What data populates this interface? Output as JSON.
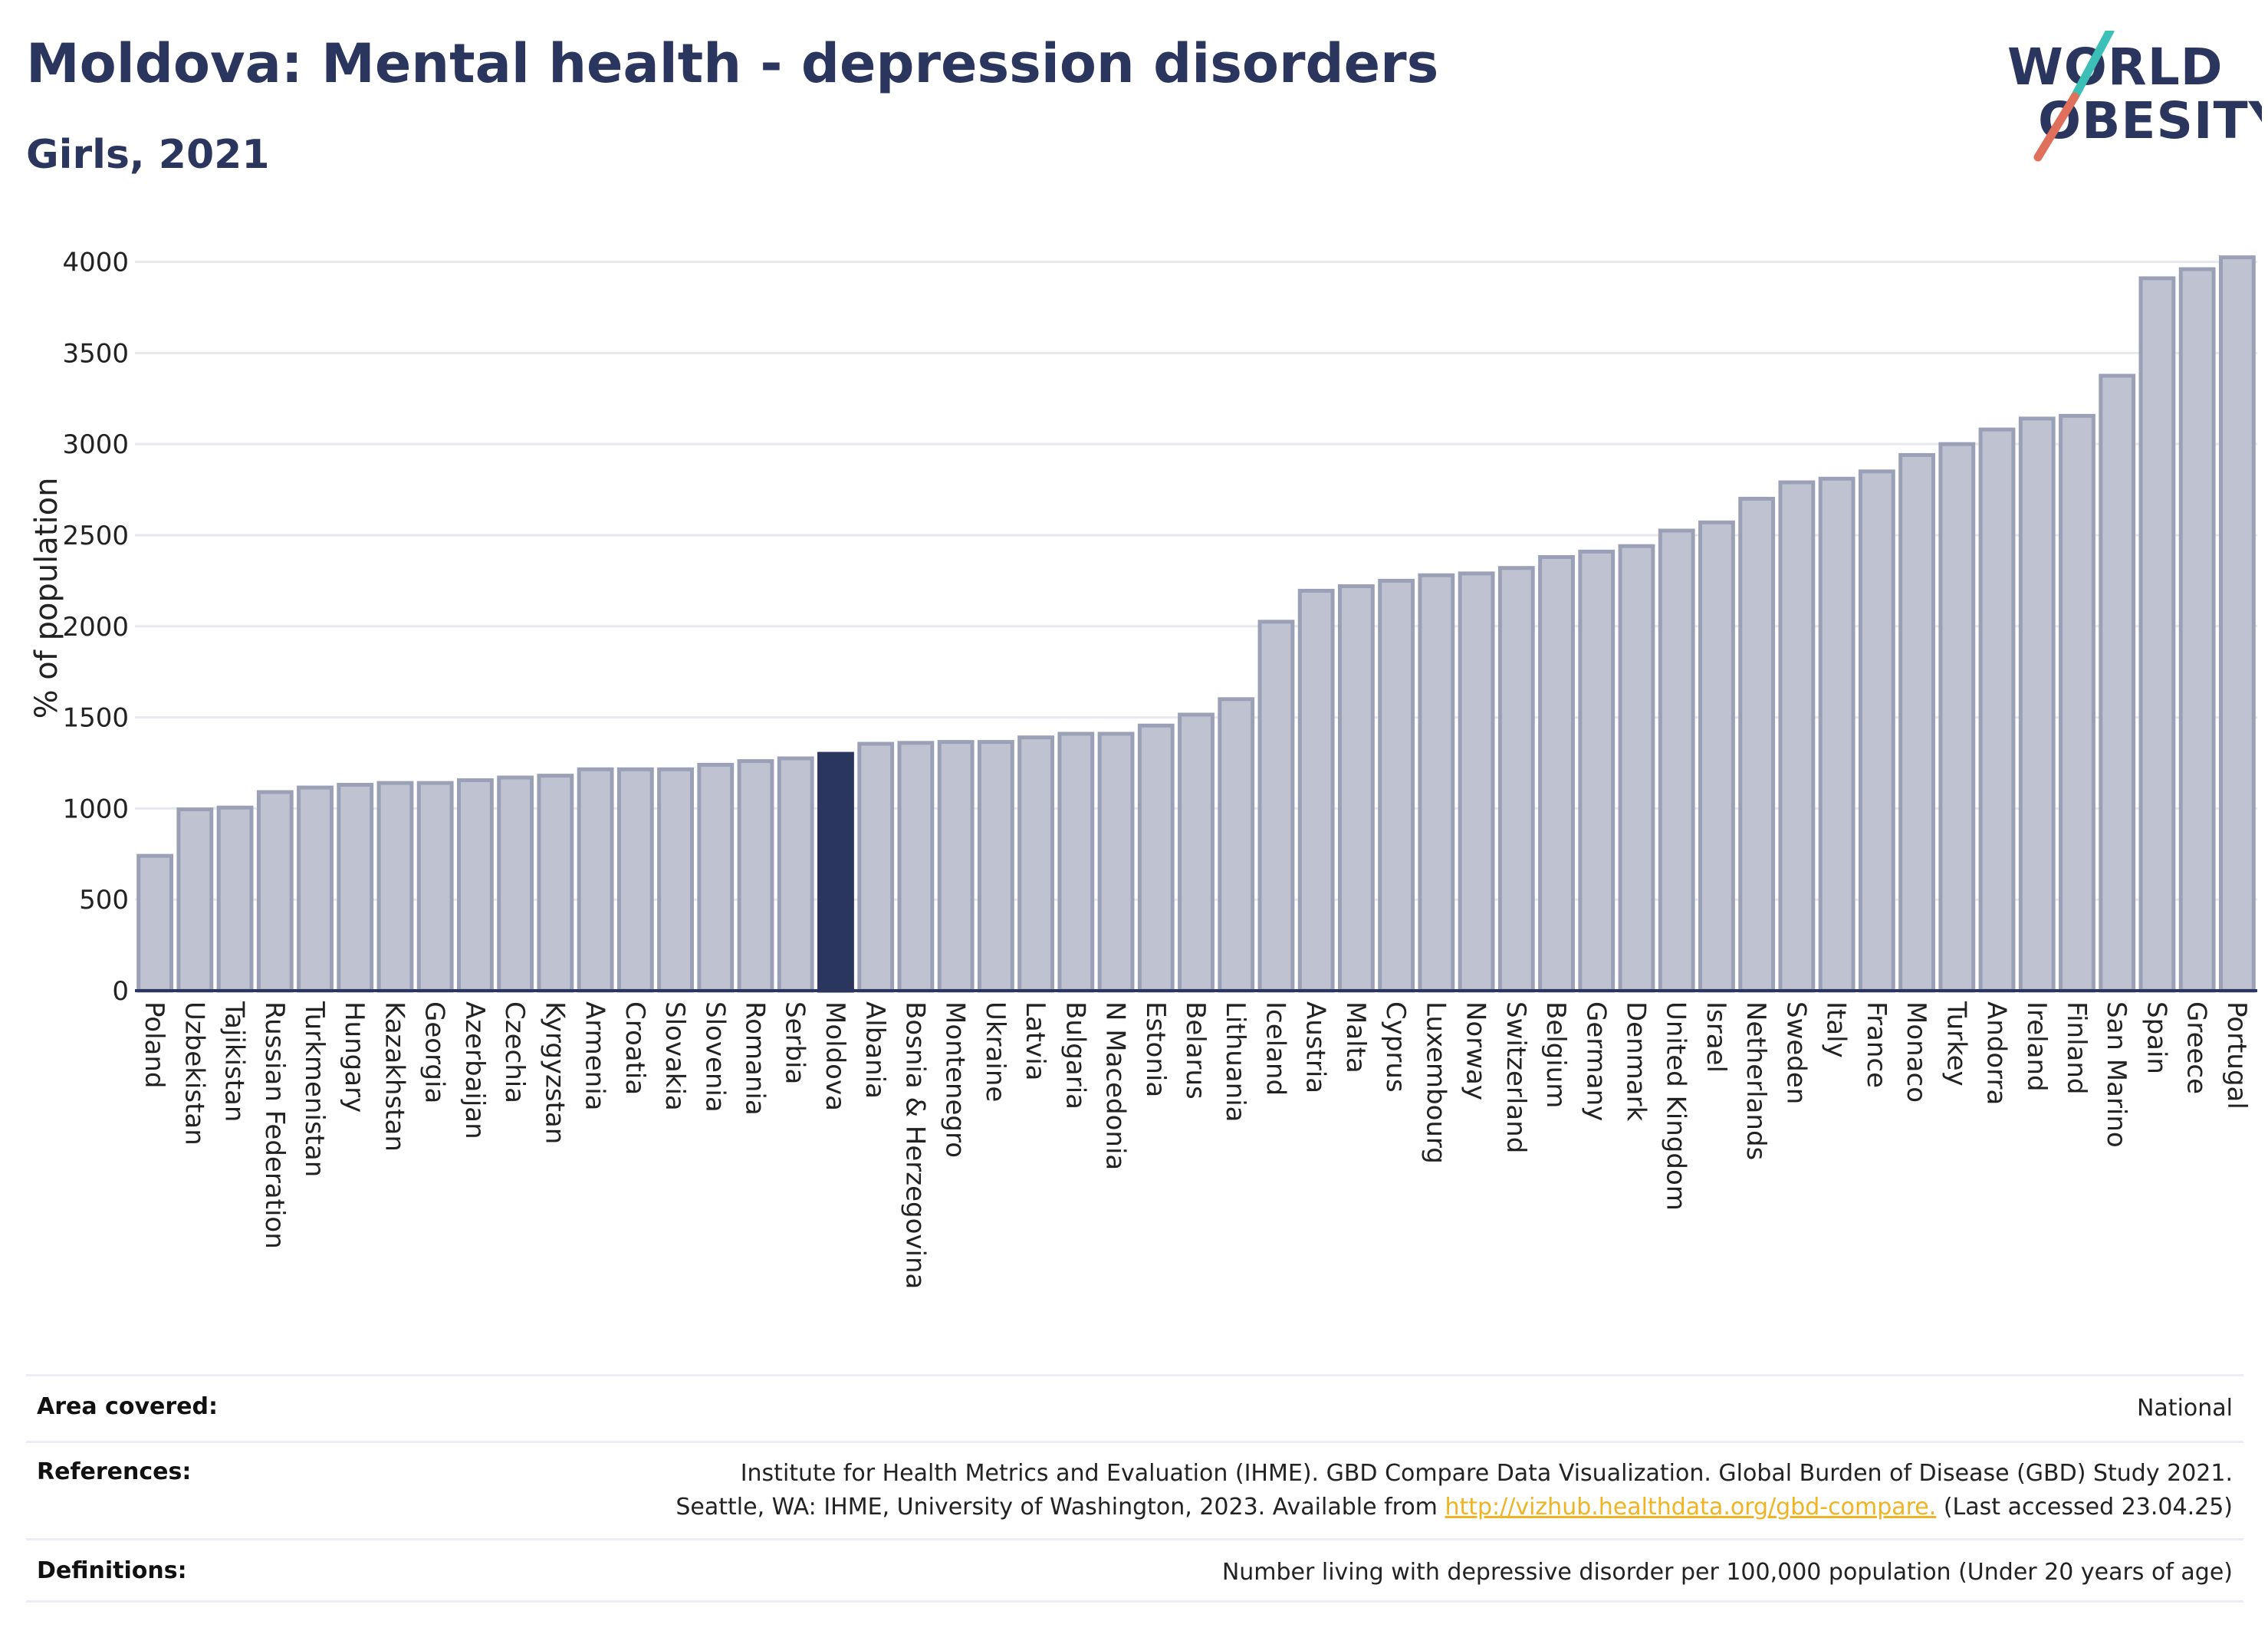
{
  "header": {
    "title": "Moldova: Mental health - depression disorders",
    "subtitle": "Girls, 2021"
  },
  "logo": {
    "line1": "WORLD",
    "line2": "OBESITY",
    "colors": {
      "text": "#2b365f",
      "slash_top": "#3bbfb6",
      "slash_bottom": "#e0705c"
    }
  },
  "chart_data": {
    "type": "bar",
    "ylabel": "% of population",
    "xlabel": "",
    "ylim": [
      0,
      4200
    ],
    "yticks": [
      0,
      500,
      1000,
      1500,
      2000,
      2500,
      3000,
      3500,
      4000
    ],
    "grid": true,
    "highlight": "Moldova",
    "colors": {
      "bar": "#bfc3d1",
      "bar_edge": "#9aa0b6",
      "highlight": "#2b365f",
      "grid": "#e6e8ee",
      "axis": "#2b365f"
    },
    "categories": [
      "Poland",
      "Uzbekistan",
      "Tajikistan",
      "Russian Federation",
      "Turkmenistan",
      "Hungary",
      "Kazakhstan",
      "Georgia",
      "Azerbaijan",
      "Czechia",
      "Kyrgyzstan",
      "Armenia",
      "Croatia",
      "Slovakia",
      "Slovenia",
      "Romania",
      "Serbia",
      "Moldova",
      "Albania",
      "Bosnia & Herzegovina",
      "Montenegro",
      "Ukraine",
      "Latvia",
      "Bulgaria",
      "N Macedonia",
      "Estonia",
      "Belarus",
      "Lithuania",
      "Iceland",
      "Austria",
      "Malta",
      "Cyprus",
      "Luxembourg",
      "Norway",
      "Switzerland",
      "Belgium",
      "Germany",
      "Denmark",
      "United Kingdom",
      "Israel",
      "Netherlands",
      "Sweden",
      "Italy",
      "France",
      "Monaco",
      "Turkey",
      "Andorra",
      "Ireland",
      "Finland",
      "San Marino",
      "Spain",
      "Greece",
      "Portugal"
    ],
    "values": [
      740,
      995,
      1005,
      1090,
      1115,
      1130,
      1140,
      1140,
      1155,
      1170,
      1180,
      1215,
      1215,
      1215,
      1240,
      1260,
      1275,
      1300,
      1355,
      1360,
      1365,
      1365,
      1390,
      1410,
      1410,
      1455,
      1515,
      1600,
      2025,
      2195,
      2220,
      2250,
      2280,
      2290,
      2320,
      2380,
      2410,
      2440,
      2525,
      2570,
      2700,
      2790,
      2810,
      2850,
      2940,
      3000,
      3080,
      3140,
      3155,
      3375,
      3910,
      3960,
      4025
    ]
  },
  "info": {
    "area_label": "Area covered:",
    "area_value": "National",
    "references_label": "References:",
    "references_line1": "Institute for Health Metrics and Evaluation (IHME). GBD Compare Data Visualization. Global Burden of Disease (GBD) Study 2021.",
    "references_line2_pre": "Seattle, WA: IHME, University of Washington, 2023. Available from ",
    "references_link": "http://vizhub.healthdata.org/gbd-compare.",
    "references_line2_post": " (Last accessed 23.04.25)",
    "definitions_label": "Definitions:",
    "definitions_value": "Number living with depressive disorder per 100,000 population (Under 20 years of age)"
  }
}
